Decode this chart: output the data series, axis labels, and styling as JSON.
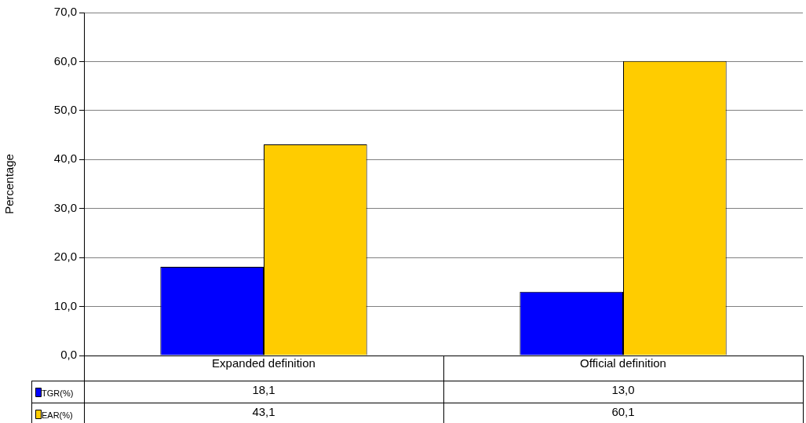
{
  "chart_data": {
    "type": "bar",
    "ylabel": "Percentage",
    "categories": [
      "Expanded definition",
      "Official definition"
    ],
    "series": [
      {
        "name": "TGR(%)",
        "color": "#0000ff",
        "values": [
          18.1,
          13.0
        ],
        "value_labels": [
          "18,1",
          "13,0"
        ]
      },
      {
        "name": "EAR(%)",
        "color": "#ffcc00",
        "values": [
          43.1,
          60.1
        ],
        "value_labels": [
          "43,1",
          "60,1"
        ]
      }
    ],
    "ylim": [
      0,
      70
    ],
    "yticks": [
      {
        "value": 0,
        "label": "0,0"
      },
      {
        "value": 10,
        "label": "10,0"
      },
      {
        "value": 20,
        "label": "20,0"
      },
      {
        "value": 30,
        "label": "30,0"
      },
      {
        "value": 40,
        "label": "40,0"
      },
      {
        "value": 50,
        "label": "50,0"
      },
      {
        "value": 60,
        "label": "60,0"
      },
      {
        "value": 70,
        "label": "70,0"
      }
    ],
    "grid": "y",
    "legend": "bottom"
  }
}
